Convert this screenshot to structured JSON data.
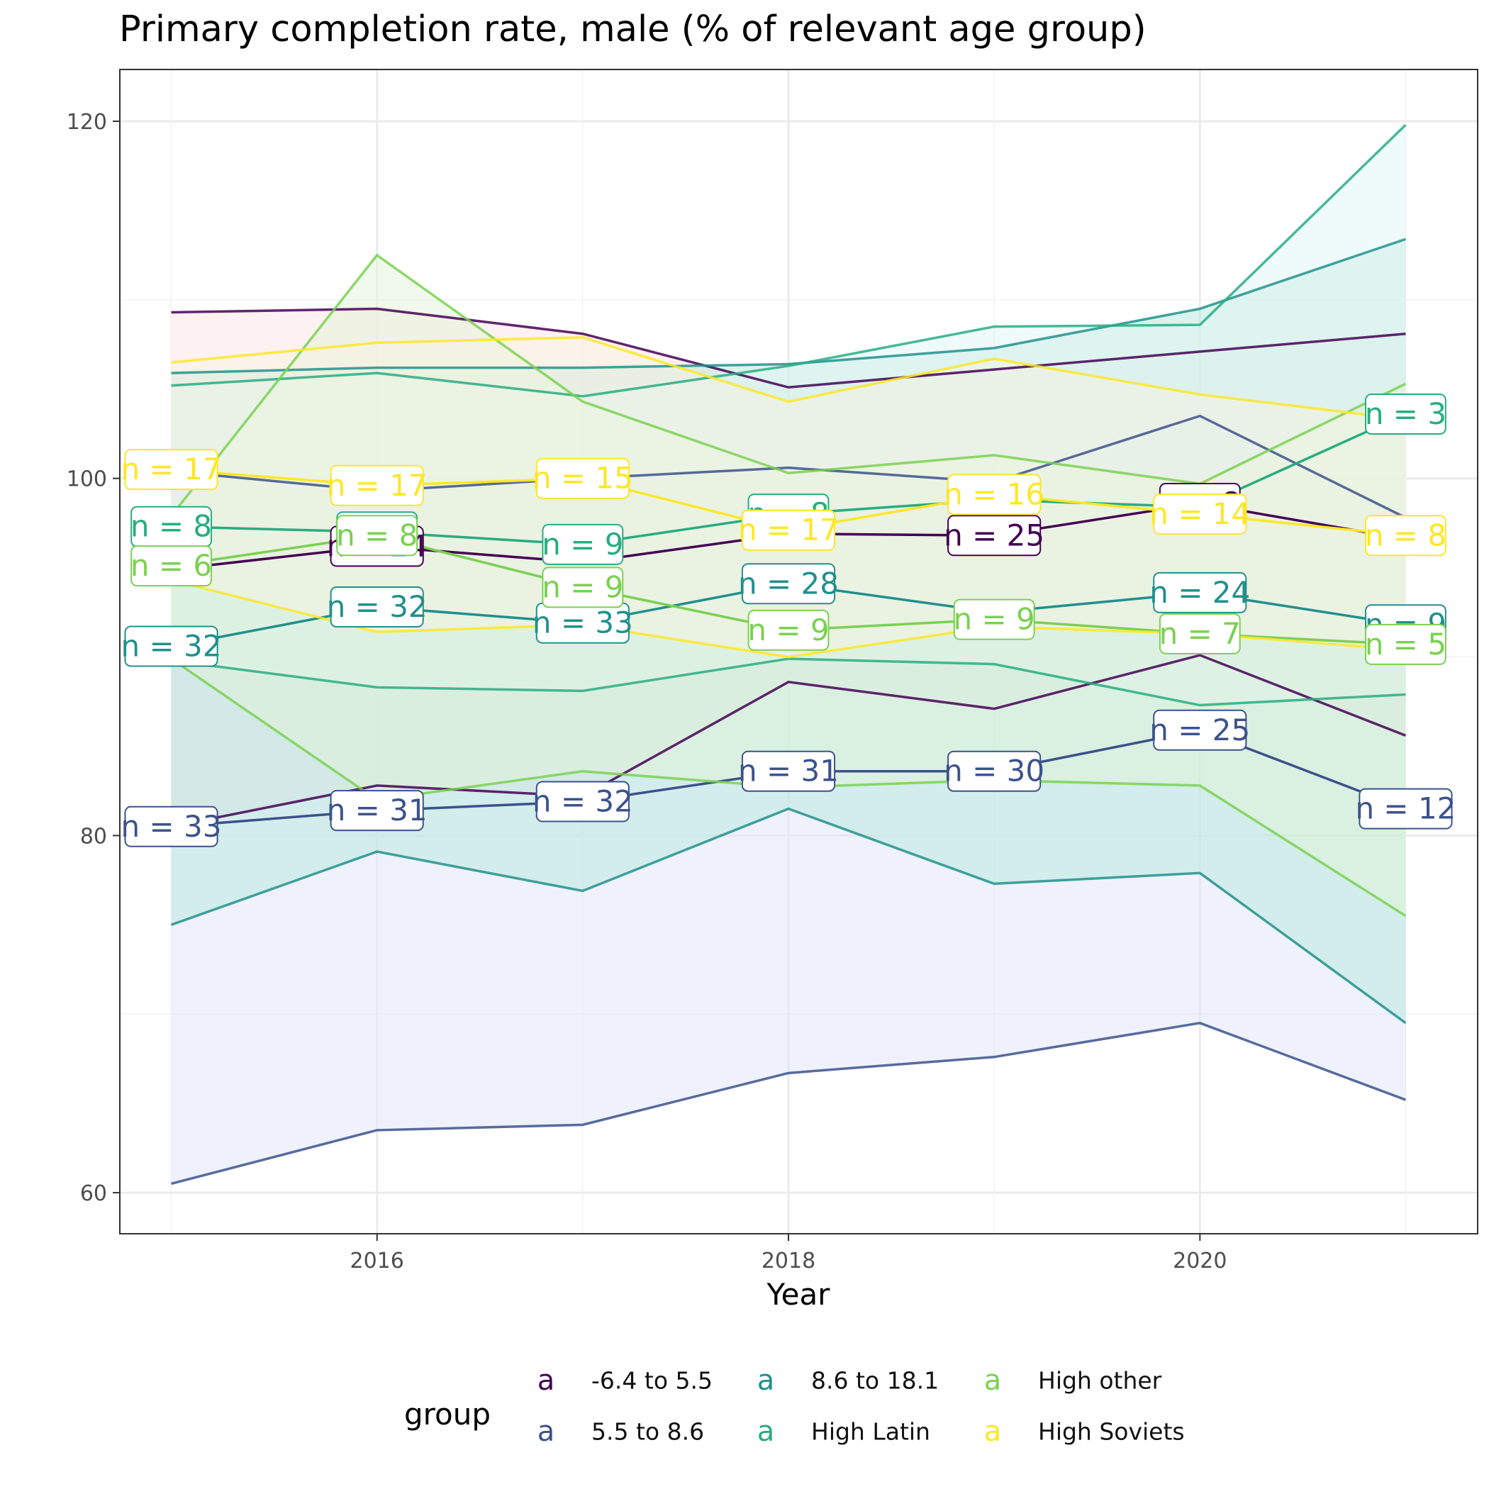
{
  "chart_data": {
    "type": "line",
    "title": "Primary completion rate, male (% of relevant age group)",
    "xlabel": "Year",
    "ylabel": "",
    "xlim": [
      2014.75,
      2021.35
    ],
    "ylim": [
      57.7,
      122.9
    ],
    "x_ticks": [
      2016,
      2018,
      2020
    ],
    "y_ticks": [
      60,
      80,
      100,
      120
    ],
    "grid": true,
    "legend_title": "group",
    "legend_position": "bottom",
    "legend_symbol": "a",
    "x": [
      2015,
      2016,
      2017,
      2018,
      2019,
      2020,
      2021
    ],
    "series": [
      {
        "name": "-6.4 to 5.5",
        "color": "#440154",
        "upper": [
          109.3,
          109.5,
          108.1,
          105.1,
          106.1,
          107.1,
          108.1
        ],
        "mean": [
          94.9,
          96.2,
          95.3,
          96.9,
          96.8,
          98.6,
          96.6
        ],
        "lower": [
          80.5,
          82.8,
          82.2,
          88.6,
          87.1,
          90.1,
          85.6
        ],
        "n": [
          null,
          24,
          null,
          null,
          25,
          8,
          null
        ],
        "n_labels": [
          "",
          "n = 24",
          "",
          "",
          "n = 25",
          "n = 8",
          ""
        ],
        "fill": "#fde3e3"
      },
      {
        "name": "5.5 to 8.6",
        "color": "#3b528b",
        "upper": [
          100.4,
          99.3,
          100.0,
          100.6,
          99.8,
          103.5,
          97.8
        ],
        "mean": [
          80.5,
          81.4,
          81.9,
          83.6,
          83.6,
          85.9,
          81.5
        ],
        "lower": [
          60.5,
          63.5,
          63.8,
          66.7,
          67.6,
          69.5,
          65.2
        ],
        "n": [
          33,
          31,
          32,
          31,
          30,
          25,
          12
        ],
        "n_labels": [
          "n = 33",
          "n = 31",
          "n = 32",
          "n = 31",
          "n = 30",
          "n = 25",
          "n = 12"
        ],
        "fill": "#dfe6f9"
      },
      {
        "name": "8.6 to 18.1",
        "color": "#21908c",
        "upper": [
          105.9,
          106.2,
          106.2,
          106.4,
          107.3,
          109.5,
          113.4
        ],
        "mean": [
          90.6,
          92.8,
          91.9,
          94.1,
          92.5,
          93.6,
          91.8
        ],
        "lower": [
          75.0,
          79.1,
          76.9,
          81.5,
          77.3,
          77.9,
          69.5
        ],
        "n": [
          32,
          32,
          33,
          28,
          null,
          24,
          9
        ],
        "n_labels": [
          "n = 32",
          "n = 32",
          "n = 33",
          "n = 28",
          "",
          "n = 24",
          "n = 9"
        ],
        "fill": "#b5e8d9"
      },
      {
        "name": "High Latin",
        "color": "#27ad81",
        "upper": [
          105.2,
          105.9,
          104.6,
          106.3,
          108.5,
          108.6,
          119.8
        ],
        "mean": [
          97.3,
          97.0,
          96.3,
          98.0,
          98.8,
          98.4,
          103.6
        ],
        "lower": [
          89.8,
          88.3,
          88.1,
          89.9,
          89.6,
          87.3,
          87.9
        ],
        "n": [
          8,
          8,
          9,
          8,
          null,
          null,
          3
        ],
        "n_labels": [
          "n = 8",
          "n = 8",
          "n = 9",
          "n = 8",
          "",
          "",
          "n = 3"
        ],
        "fill": "#e0f5f5"
      },
      {
        "name": "High other",
        "color": "#7ad151",
        "upper": [
          97.9,
          112.5,
          104.3,
          100.3,
          101.3,
          99.7,
          105.3
        ],
        "mean": [
          95.1,
          96.8,
          93.9,
          91.5,
          92.1,
          91.3,
          90.7
        ],
        "lower": [
          89.9,
          82.0,
          83.6,
          82.7,
          83.1,
          82.8,
          75.5
        ],
        "n": [
          6,
          8,
          9,
          9,
          9,
          7,
          5
        ],
        "n_labels": [
          "n = 6",
          "n = 8",
          "n = 9",
          "n = 9",
          "n = 9",
          "n = 7",
          "n = 5"
        ],
        "fill": "#e2f3d8"
      },
      {
        "name": "High Soviets",
        "color": "#fde725",
        "upper": [
          106.5,
          107.6,
          107.9,
          104.3,
          106.7,
          104.7,
          103.3
        ],
        "mean": [
          100.5,
          99.6,
          100.0,
          97.1,
          99.1,
          98.0,
          96.8
        ],
        "lower": [
          94.3,
          91.4,
          91.8,
          90.0,
          91.7,
          91.3,
          90.4
        ],
        "n": [
          17,
          17,
          15,
          17,
          16,
          14,
          8
        ],
        "n_labels": [
          "n = 17",
          "n = 17",
          "n = 15",
          "n = 17",
          "n = 16",
          "n = 14",
          "n = 8"
        ],
        "fill": "#f7f3e1"
      }
    ]
  }
}
